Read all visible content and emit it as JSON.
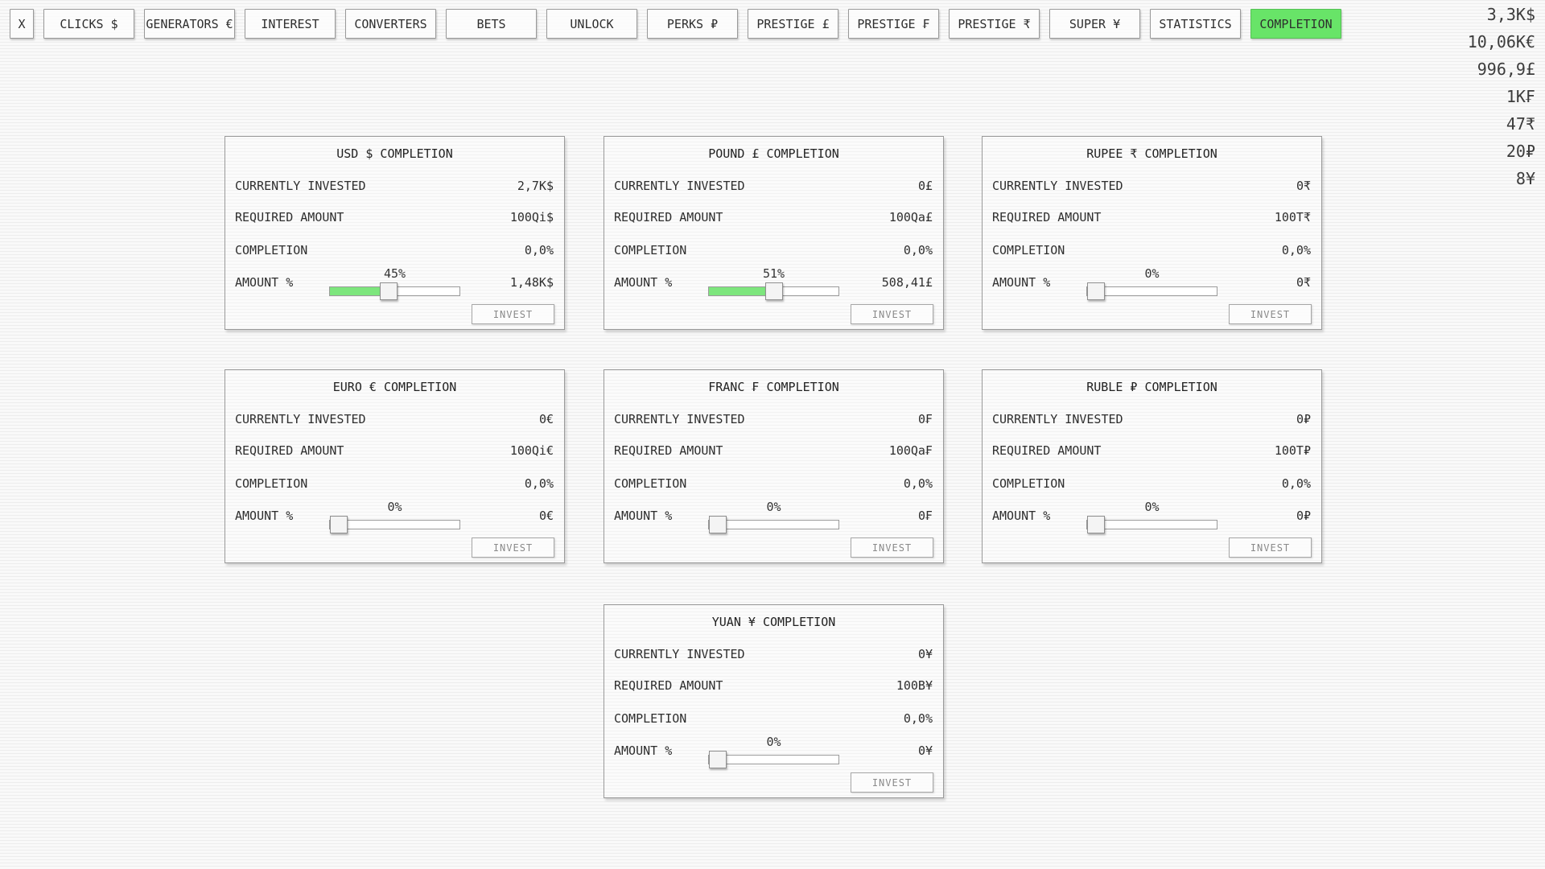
{
  "nav": {
    "active_color": "#68e468",
    "items": [
      {
        "label": "X"
      },
      {
        "label": "CLICKS $"
      },
      {
        "label": "GENERATORS €"
      },
      {
        "label": "INTEREST"
      },
      {
        "label": "CONVERTERS"
      },
      {
        "label": "BETS"
      },
      {
        "label": "UNLOCK"
      },
      {
        "label": "PERKS ₽"
      },
      {
        "label": "PRESTIGE £"
      },
      {
        "label": "PRESTIGE ₣"
      },
      {
        "label": "PRESTIGE ₹"
      },
      {
        "label": "SUPER ¥"
      },
      {
        "label": "STATISTICS"
      },
      {
        "label": "COMPLETION",
        "active": true
      }
    ]
  },
  "currencies": [
    "3,3K$",
    "10,06K€",
    "996,9£",
    "1K₣",
    "47₹",
    "20₽",
    "8¥"
  ],
  "labels": {
    "currently_invested": "CURRENTLY INVESTED",
    "required_amount": "REQUIRED AMOUNT",
    "completion": "COMPLETION",
    "amount_pct": "AMOUNT %",
    "invest": "INVEST"
  },
  "cards": [
    {
      "title": "USD $ COMPLETION",
      "invested": "2,7K$",
      "required": "100Qi$",
      "completion": "0,0%",
      "percent": "45%",
      "slider_pct": 45,
      "amount": "1,48K$"
    },
    {
      "title": "POUND £ COMPLETION",
      "invested": "0£",
      "required": "100Qa£",
      "completion": "0,0%",
      "percent": "51%",
      "slider_pct": 51,
      "amount": "508,41£"
    },
    {
      "title": "RUPEE ₹ COMPLETION",
      "invested": "0₹",
      "required": "100T₹",
      "completion": "0,0%",
      "percent": "0%",
      "slider_pct": 0,
      "amount": "0₹"
    },
    {
      "title": "EURO € COMPLETION",
      "invested": "0€",
      "required": "100Qi€",
      "completion": "0,0%",
      "percent": "0%",
      "slider_pct": 0,
      "amount": "0€"
    },
    {
      "title": "FRANC ₣ COMPLETION",
      "invested": "0₣",
      "required": "100Qa₣",
      "completion": "0,0%",
      "percent": "0%",
      "slider_pct": 0,
      "amount": "0₣"
    },
    {
      "title": "RUBLE ₽ COMPLETION",
      "invested": "0₽",
      "required": "100T₽",
      "completion": "0,0%",
      "percent": "0%",
      "slider_pct": 0,
      "amount": "0₽"
    },
    {
      "title": "YUAN ¥ COMPLETION",
      "invested": "0¥",
      "required": "100B¥",
      "completion": "0,0%",
      "percent": "0%",
      "slider_pct": 0,
      "amount": "0¥"
    }
  ]
}
